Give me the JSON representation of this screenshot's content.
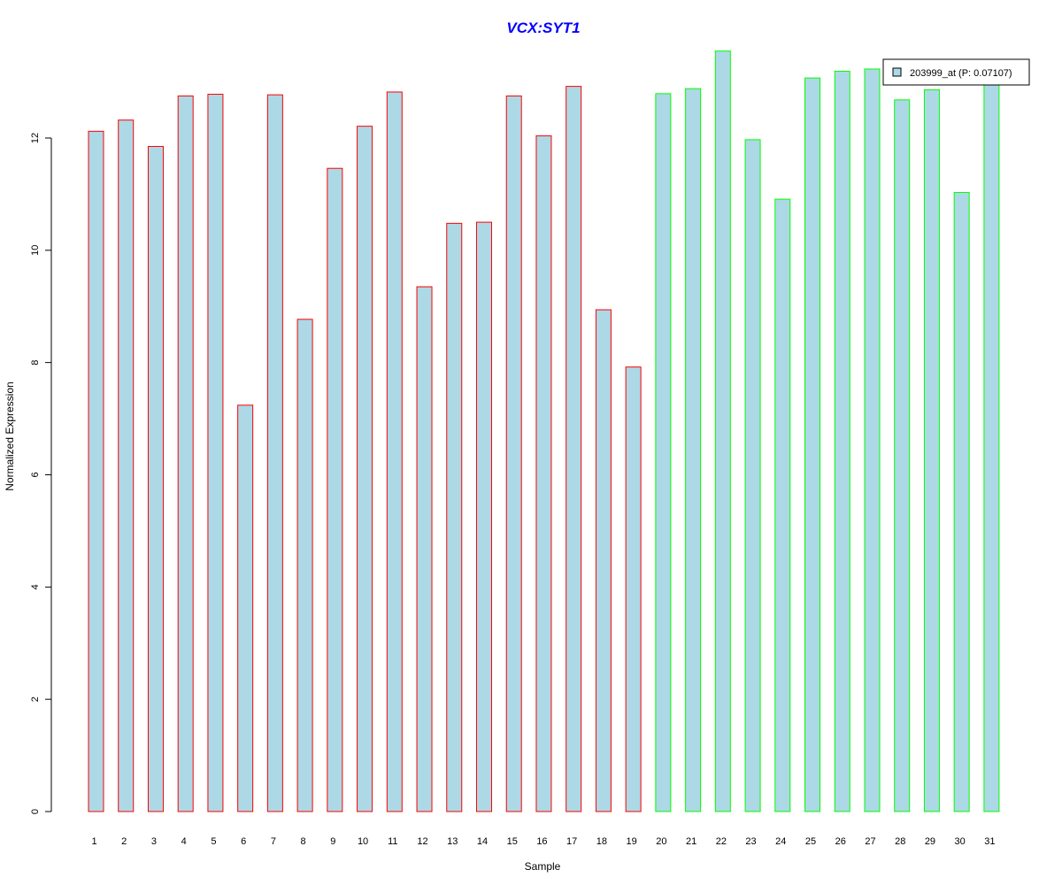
{
  "chart_data": {
    "type": "bar",
    "title": "VCX:SYT1",
    "xlabel": "Sample",
    "ylabel": "Normalized Expression",
    "ylim": [
      0,
      13.6
    ],
    "yticks": [
      0,
      2,
      4,
      6,
      8,
      10,
      12
    ],
    "categories": [
      "1",
      "2",
      "3",
      "4",
      "5",
      "6",
      "7",
      "8",
      "9",
      "10",
      "11",
      "12",
      "13",
      "14",
      "15",
      "16",
      "17",
      "18",
      "19",
      "20",
      "21",
      "22",
      "23",
      "24",
      "25",
      "26",
      "27",
      "28",
      "29",
      "30",
      "31"
    ],
    "series": [
      {
        "name": "203999_at (P: 0.07107)",
        "values": [
          12.12,
          12.32,
          11.85,
          12.75,
          12.78,
          7.24,
          12.77,
          8.77,
          11.46,
          12.21,
          12.82,
          9.35,
          10.48,
          10.5,
          12.75,
          12.04,
          12.92,
          8.94,
          7.92,
          12.79,
          12.88,
          13.55,
          11.97,
          10.91,
          13.07,
          13.19,
          13.23,
          12.68,
          12.86,
          11.03,
          13.0
        ]
      }
    ],
    "fill_color": "#add8e6",
    "group_border_colors": {
      "1-19": "#ff0000",
      "20-31": "#00ff00"
    },
    "border_colors": [
      "#ff0000",
      "#ff0000",
      "#ff0000",
      "#ff0000",
      "#ff0000",
      "#ff0000",
      "#ff0000",
      "#ff0000",
      "#ff0000",
      "#ff0000",
      "#ff0000",
      "#ff0000",
      "#ff0000",
      "#ff0000",
      "#ff0000",
      "#ff0000",
      "#ff0000",
      "#ff0000",
      "#ff0000",
      "#00ff00",
      "#00ff00",
      "#00ff00",
      "#00ff00",
      "#00ff00",
      "#00ff00",
      "#00ff00",
      "#00ff00",
      "#00ff00",
      "#00ff00",
      "#00ff00",
      "#00ff00"
    ],
    "legend": {
      "placement": "top-right",
      "entries": [
        "203999_at (P: 0.07107)"
      ]
    },
    "grid": false
  }
}
